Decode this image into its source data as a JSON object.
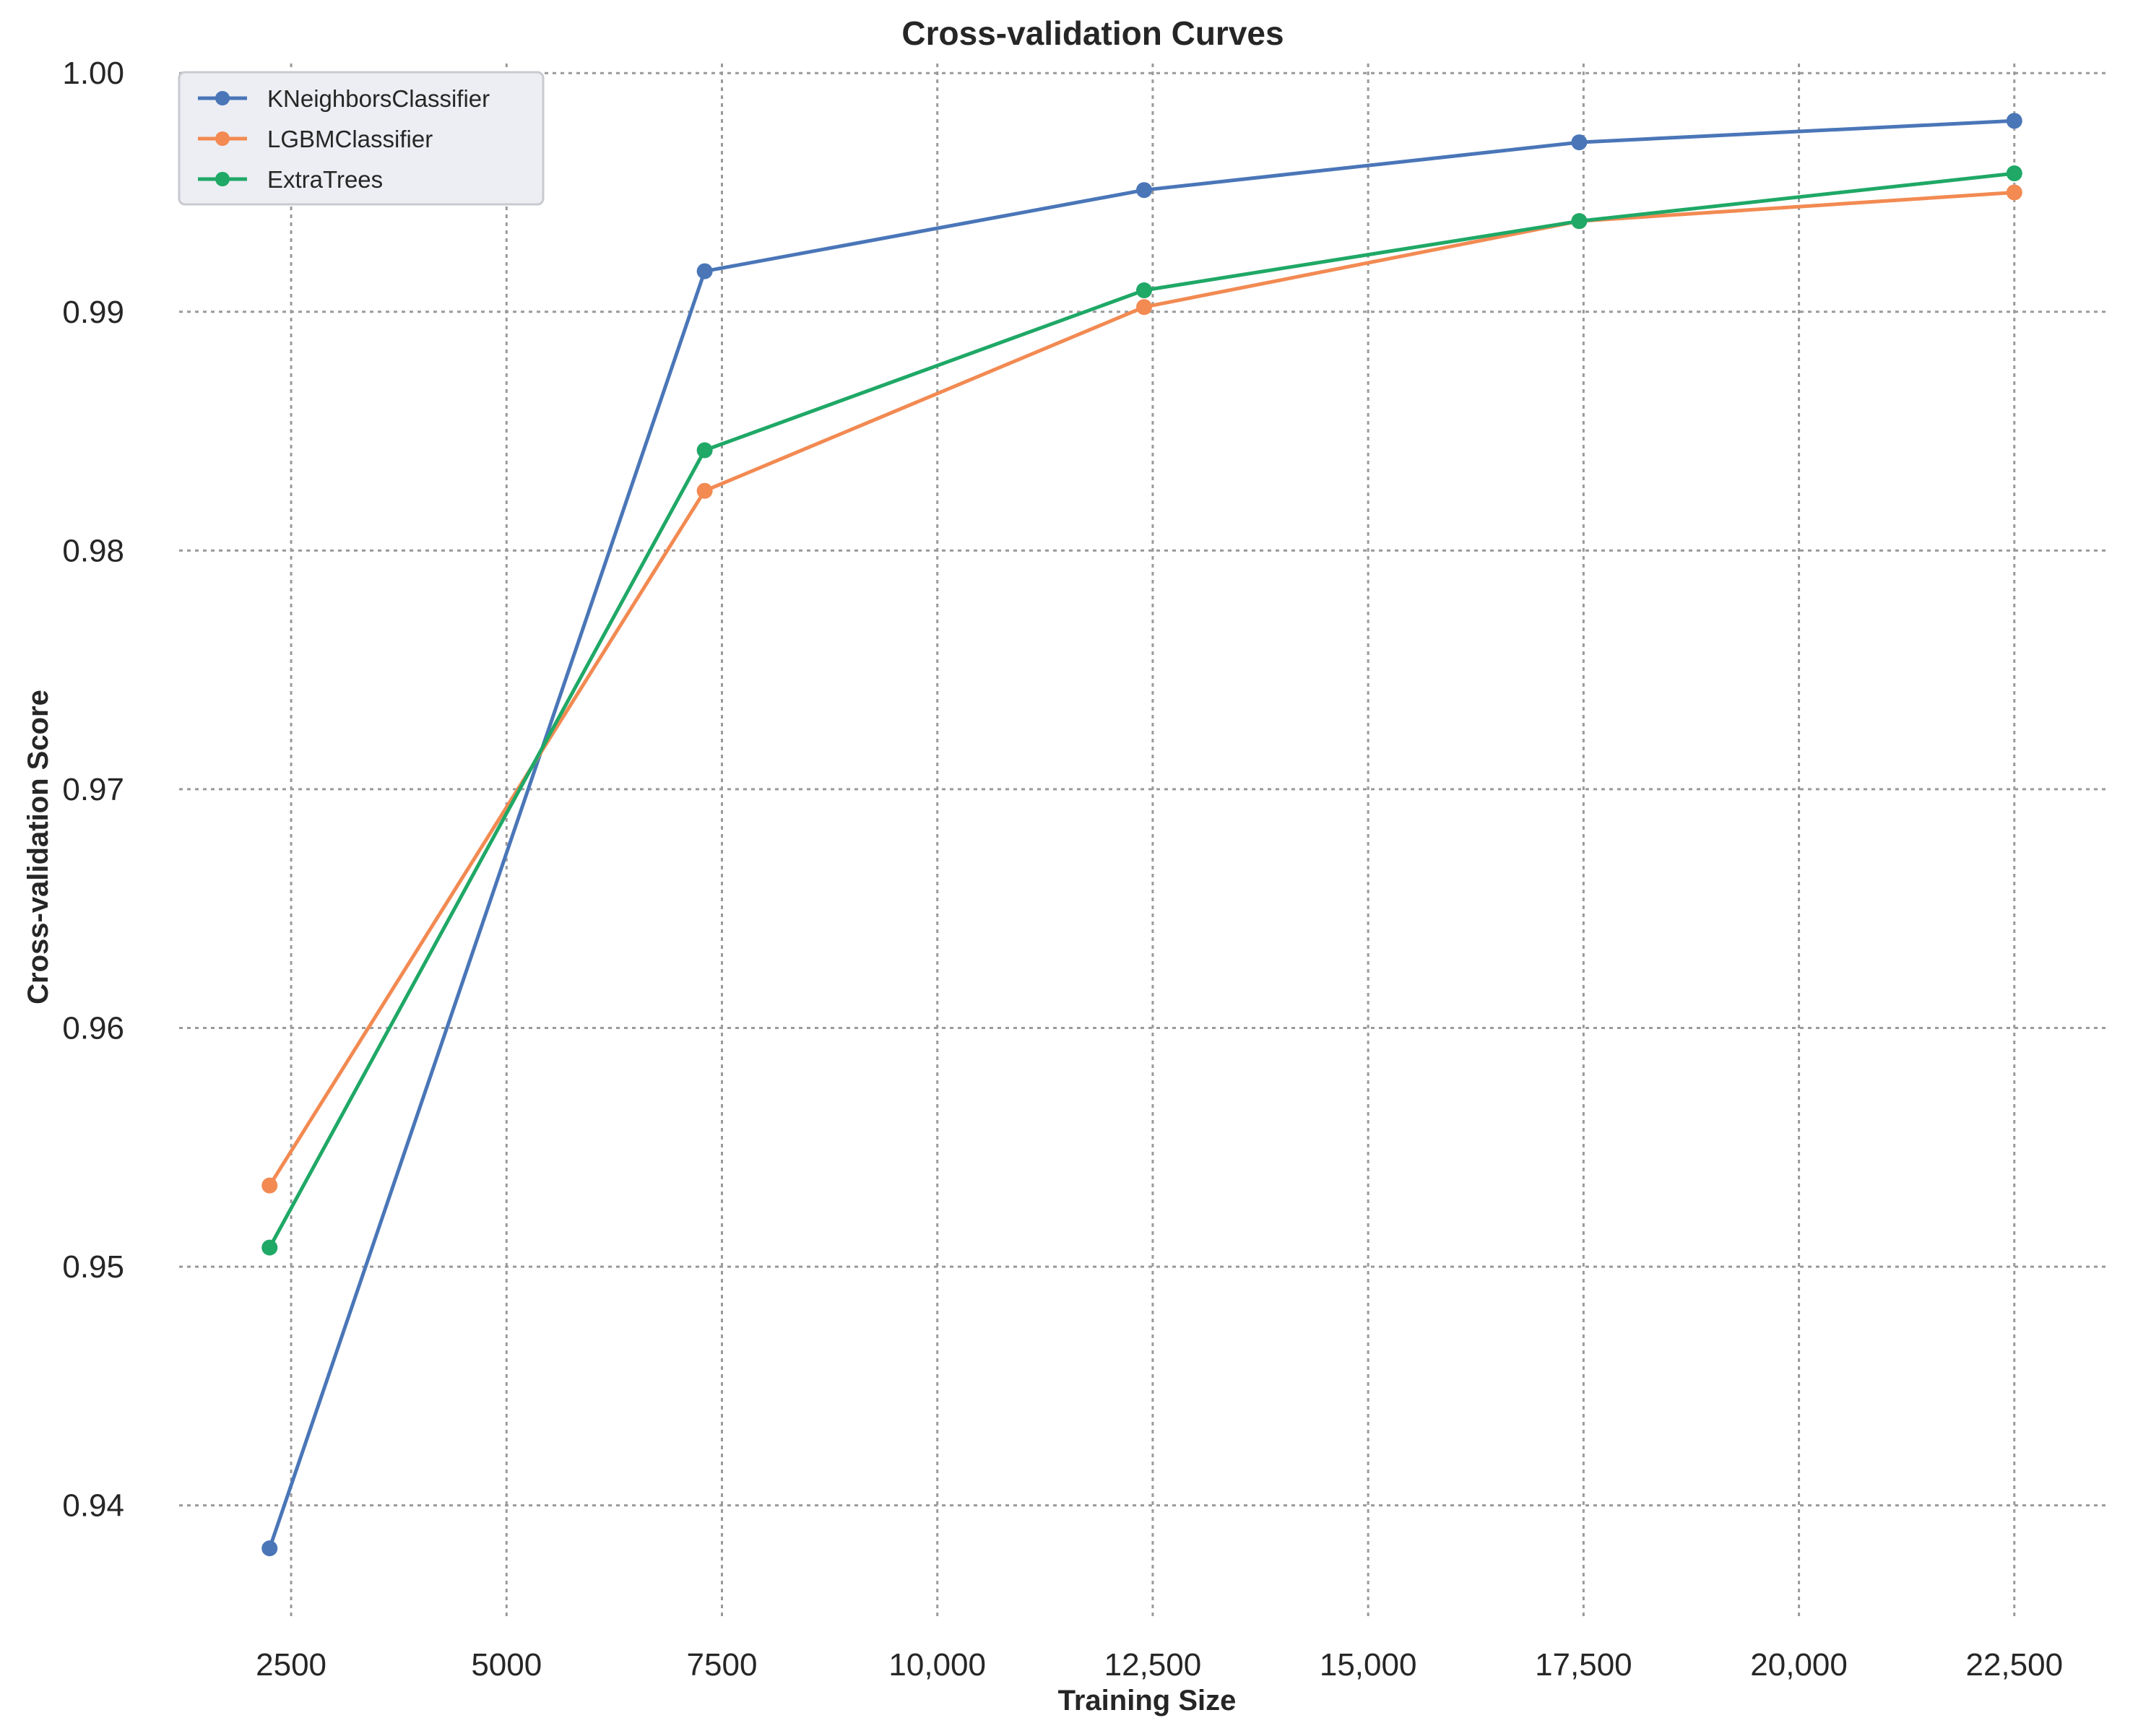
{
  "chart_data": {
    "type": "line",
    "title": "Cross-validation Curves",
    "xlabel": "Training Size",
    "ylabel": "Cross-validation Score",
    "xlim": [
      1200,
      23600
    ],
    "ylim": [
      0.9353,
      1.0004
    ],
    "xticks": [
      {
        "value": 2500,
        "label": "2500"
      },
      {
        "value": 5000,
        "label": "5000"
      },
      {
        "value": 7500,
        "label": "7500"
      },
      {
        "value": 10000,
        "label": "10,000"
      },
      {
        "value": 12500,
        "label": "12,500"
      },
      {
        "value": 15000,
        "label": "15,000"
      },
      {
        "value": 17500,
        "label": "17,500"
      },
      {
        "value": 20000,
        "label": "20,000"
      },
      {
        "value": 22500,
        "label": "22,500"
      }
    ],
    "yticks": [
      {
        "value": 0.94,
        "label": "0.94"
      },
      {
        "value": 0.95,
        "label": "0.95"
      },
      {
        "value": 0.96,
        "label": "0.96"
      },
      {
        "value": 0.97,
        "label": "0.97"
      },
      {
        "value": 0.98,
        "label": "0.98"
      },
      {
        "value": 0.99,
        "label": "0.99"
      },
      {
        "value": 1.0,
        "label": "1.00"
      }
    ],
    "grid": true,
    "legend_position": "top-left",
    "x": [
      2250,
      7300,
      12400,
      17450,
      22500
    ],
    "series": [
      {
        "name": "KNeighborsClassifier",
        "color": "#4a76b8",
        "values": [
          0.9382,
          0.9917,
          0.9951,
          0.9971,
          0.998
        ]
      },
      {
        "name": "LGBMClassifier",
        "color": "#f28a52",
        "values": [
          0.9534,
          0.9825,
          0.9902,
          0.9938,
          0.995
        ]
      },
      {
        "name": "ExtraTrees",
        "color": "#1fa866",
        "values": [
          0.9508,
          0.9842,
          0.9909,
          0.9938,
          0.9958
        ]
      }
    ]
  }
}
